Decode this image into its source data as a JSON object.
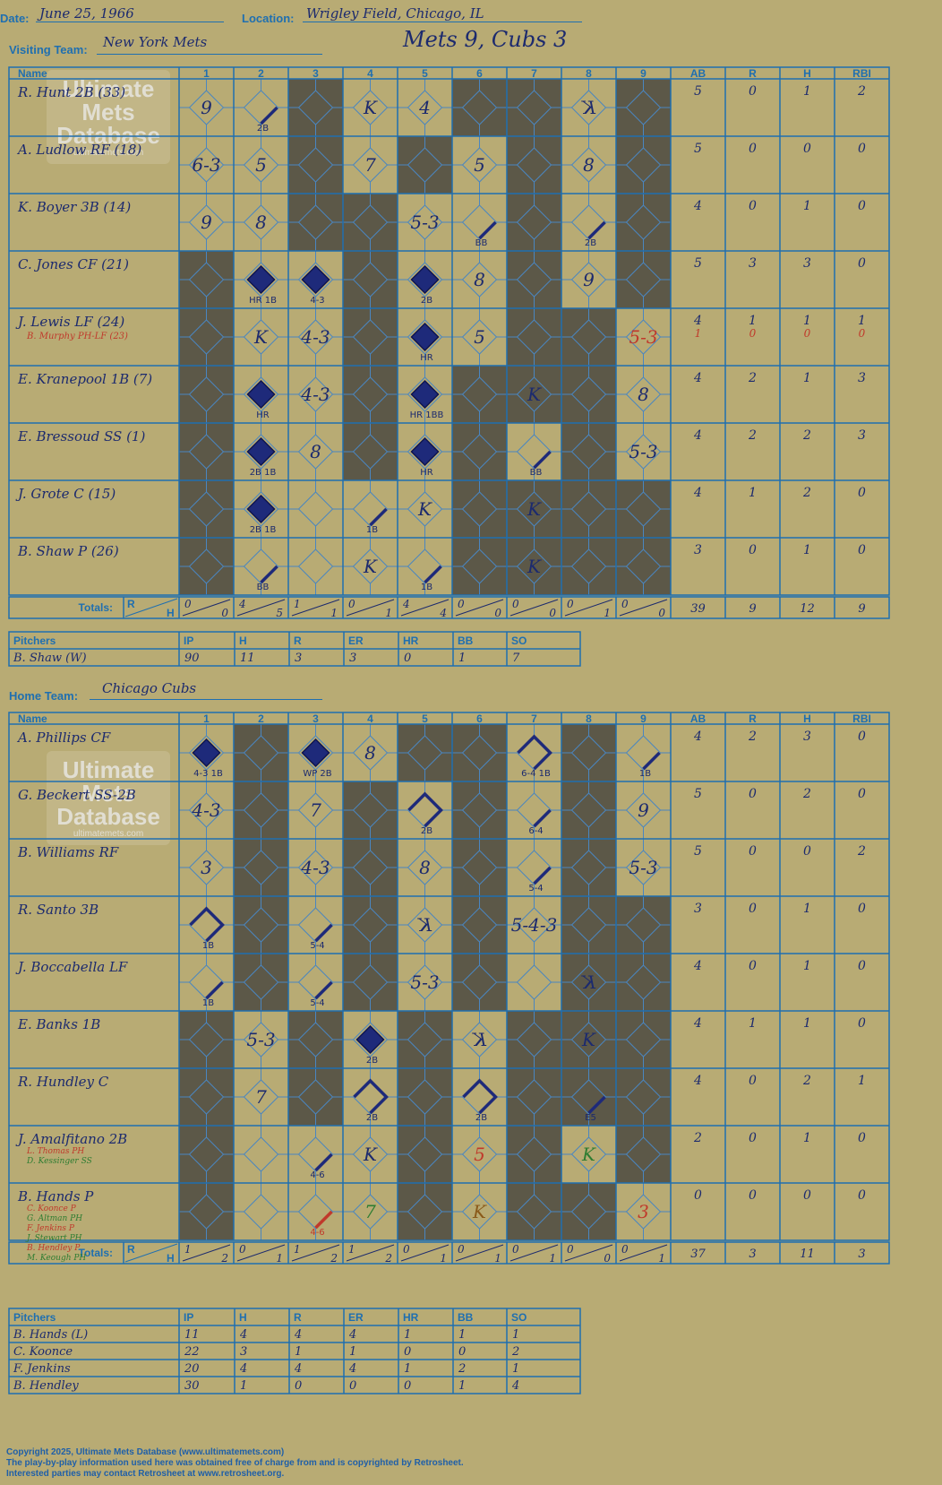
{
  "header": {
    "date_label": "Date:",
    "date": "June 25, 1966",
    "location_label": "Location:",
    "location": "Wrigley Field, Chicago, IL",
    "visiting_label": "Visiting Team:",
    "visiting_team": "New York Mets",
    "result": "Mets 9, Cubs 3",
    "home_label": "Home Team:",
    "home_team": "Chicago Cubs"
  },
  "watermark": {
    "line1": "Ultimate",
    "line2": "Mets",
    "line3": "Database",
    "site": "ultimatemets.com"
  },
  "grid_labels": {
    "name": "Name",
    "innings": [
      "1",
      "2",
      "3",
      "4",
      "5",
      "6",
      "7",
      "8",
      "9"
    ],
    "stats": [
      "AB",
      "R",
      "H",
      "RBI"
    ],
    "totals": "Totals:",
    "r": "R",
    "h": "H"
  },
  "pitch_labels": [
    "Pitchers",
    "IP",
    "H",
    "R",
    "ER",
    "HR",
    "BB",
    "SO"
  ],
  "visitors": {
    "players": [
      {
        "name": "R. Hunt 2B (33)",
        "stats": [
          "5",
          "0",
          "1",
          "2"
        ]
      },
      {
        "name": "A. Ludlow RF (18)",
        "stats": [
          "5",
          "0",
          "0",
          "0"
        ]
      },
      {
        "name": "K. Boyer 3B (14)",
        "stats": [
          "4",
          "0",
          "1",
          "0"
        ]
      },
      {
        "name": "C. Jones CF (21)",
        "stats": [
          "5",
          "3",
          "3",
          "0"
        ]
      },
      {
        "name": "J. Lewis LF (24)",
        "sub": "B. Murphy PH-LF (23)",
        "stats": [
          "4",
          "1",
          "1",
          "1"
        ],
        "sub_stats": [
          "1",
          "0",
          "0",
          "0"
        ]
      },
      {
        "name": "E. Kranepool 1B (7)",
        "stats": [
          "4",
          "2",
          "1",
          "3"
        ]
      },
      {
        "name": "E. Bressoud SS (1)",
        "stats": [
          "4",
          "2",
          "2",
          "3"
        ]
      },
      {
        "name": "J. Grote C (15)",
        "stats": [
          "4",
          "1",
          "2",
          "0"
        ]
      },
      {
        "name": "B. Shaw P (26)",
        "stats": [
          "3",
          "0",
          "1",
          "0"
        ]
      }
    ],
    "inning_totals": [
      [
        "0",
        "0"
      ],
      [
        "4",
        "5"
      ],
      [
        "1",
        "1"
      ],
      [
        "0",
        "1"
      ],
      [
        "4",
        "4"
      ],
      [
        "0",
        "0"
      ],
      [
        "0",
        "0"
      ],
      [
        "0",
        "1"
      ],
      [
        "0",
        "0"
      ]
    ],
    "totals": [
      "39",
      "9",
      "12",
      "9"
    ],
    "cells": [
      {
        "r": 0,
        "c": 0,
        "t": "9"
      },
      {
        "r": 0,
        "c": 1,
        "hit": 1,
        "note": "2B"
      },
      {
        "r": 0,
        "c": 3,
        "t": "K"
      },
      {
        "r": 0,
        "c": 4,
        "t": "4"
      },
      {
        "r": 0,
        "c": 7,
        "t": "K",
        "rev": true
      },
      {
        "r": 1,
        "c": 0,
        "t": "6-3"
      },
      {
        "r": 1,
        "c": 1,
        "t": "5"
      },
      {
        "r": 1,
        "c": 3,
        "t": "7"
      },
      {
        "r": 1,
        "c": 5,
        "t": "5"
      },
      {
        "r": 1,
        "c": 7,
        "t": "8"
      },
      {
        "r": 2,
        "c": 0,
        "t": "9"
      },
      {
        "r": 2,
        "c": 1,
        "t": "8"
      },
      {
        "r": 2,
        "c": 4,
        "t": "5-3"
      },
      {
        "r": 2,
        "c": 5,
        "hit": 1,
        "note": "BB"
      },
      {
        "r": 2,
        "c": 7,
        "hit": 1,
        "note": "2B"
      },
      {
        "r": 3,
        "c": 1,
        "run": true,
        "note": "HR 1B"
      },
      {
        "r": 3,
        "c": 2,
        "run": true,
        "note": "4-3"
      },
      {
        "r": 3,
        "c": 4,
        "run": true,
        "note": "2B"
      },
      {
        "r": 3,
        "c": 5,
        "t": "8"
      },
      {
        "r": 3,
        "c": 7,
        "t": "9"
      },
      {
        "r": 4,
        "c": 1,
        "t": "K"
      },
      {
        "r": 4,
        "c": 2,
        "t": "4-3"
      },
      {
        "r": 4,
        "c": 4,
        "run": true,
        "note": "HR"
      },
      {
        "r": 4,
        "c": 5,
        "t": "5"
      },
      {
        "r": 4,
        "c": 8,
        "t": "5-3",
        "red": true
      },
      {
        "r": 5,
        "c": 1,
        "run": true,
        "note": "HR"
      },
      {
        "r": 5,
        "c": 2,
        "t": "4-3"
      },
      {
        "r": 5,
        "c": 4,
        "run": true,
        "note": "HR 1BB"
      },
      {
        "r": 5,
        "c": 6,
        "t": "K"
      },
      {
        "r": 5,
        "c": 8,
        "t": "8"
      },
      {
        "r": 6,
        "c": 1,
        "run": true,
        "note": "2B 1B"
      },
      {
        "r": 6,
        "c": 2,
        "t": "8"
      },
      {
        "r": 6,
        "c": 4,
        "run": true,
        "note": "HR"
      },
      {
        "r": 6,
        "c": 6,
        "hit": 1,
        "note": "BB"
      },
      {
        "r": 6,
        "c": 8,
        "t": "5-3"
      },
      {
        "r": 7,
        "c": 1,
        "run": true,
        "note": "2B 1B"
      },
      {
        "r": 7,
        "c": 3,
        "hit": 1,
        "note": "1B"
      },
      {
        "r": 7,
        "c": 4,
        "t": "K"
      },
      {
        "r": 7,
        "c": 6,
        "t": "K"
      },
      {
        "r": 8,
        "c": 1,
        "hit": 1,
        "note": "BB"
      },
      {
        "r": 8,
        "c": 3,
        "t": "K"
      },
      {
        "r": 8,
        "c": 4,
        "hit": 1,
        "note": "1B"
      },
      {
        "r": 8,
        "c": 6,
        "t": "K"
      }
    ],
    "pitchers": [
      {
        "name": "B. Shaw (W)",
        "stats": [
          "90",
          "11",
          "3",
          "3",
          "0",
          "1",
          "7"
        ]
      }
    ]
  },
  "home": {
    "players": [
      {
        "name": "A. Phillips CF",
        "stats": [
          "4",
          "2",
          "3",
          "0"
        ]
      },
      {
        "name": "G. Beckert SS-2B",
        "stats": [
          "5",
          "0",
          "2",
          "0"
        ]
      },
      {
        "name": "B. Williams RF",
        "stats": [
          "5",
          "0",
          "0",
          "2"
        ]
      },
      {
        "name": "R. Santo 3B",
        "stats": [
          "3",
          "0",
          "1",
          "0"
        ]
      },
      {
        "name": "J. Boccabella LF",
        "stats": [
          "4",
          "0",
          "1",
          "0"
        ]
      },
      {
        "name": "E. Banks 1B",
        "stats": [
          "4",
          "1",
          "1",
          "0"
        ]
      },
      {
        "name": "R. Hundley C",
        "stats": [
          "4",
          "0",
          "2",
          "1"
        ]
      },
      {
        "name": "J. Amalfitano 2B",
        "subs": [
          "L. Thomas PH",
          "D. Kessinger SS"
        ],
        "stats": [
          "2",
          "0",
          "1",
          "0"
        ]
      },
      {
        "name": "B. Hands P",
        "subs": [
          "C. Koonce P",
          "G. Altman PH",
          "F. Jenkins P",
          "J. Stewart PH",
          "B. Hendley P",
          "M. Keough PH"
        ],
        "stats": [
          "0",
          "0",
          "0",
          "0"
        ]
      }
    ],
    "inning_totals": [
      [
        "1",
        "2"
      ],
      [
        "0",
        "1"
      ],
      [
        "1",
        "2"
      ],
      [
        "1",
        "2"
      ],
      [
        "0",
        "1"
      ],
      [
        "0",
        "1"
      ],
      [
        "0",
        "1"
      ],
      [
        "0",
        "0"
      ],
      [
        "0",
        "1"
      ]
    ],
    "totals": [
      "37",
      "3",
      "11",
      "3"
    ],
    "cells": [
      {
        "r": 0,
        "c": 0,
        "run": true,
        "note": "4-3 1B"
      },
      {
        "r": 0,
        "c": 2,
        "run": true,
        "note": "WP 2B"
      },
      {
        "r": 0,
        "c": 3,
        "t": "8"
      },
      {
        "r": 0,
        "c": 6,
        "hit": 2,
        "note": "6-4 1B"
      },
      {
        "r": 0,
        "c": 8,
        "hit": 1,
        "note": "1B"
      },
      {
        "r": 1,
        "c": 0,
        "t": "4-3"
      },
      {
        "r": 1,
        "c": 2,
        "t": "7"
      },
      {
        "r": 1,
        "c": 4,
        "hit": 2,
        "note": "2B"
      },
      {
        "r": 1,
        "c": 6,
        "hit": 1,
        "note": "6-4"
      },
      {
        "r": 1,
        "c": 8,
        "t": "9"
      },
      {
        "r": 2,
        "c": 0,
        "t": "3"
      },
      {
        "r": 2,
        "c": 2,
        "t": "4-3"
      },
      {
        "r": 2,
        "c": 4,
        "t": "8"
      },
      {
        "r": 2,
        "c": 6,
        "hit": 1,
        "note": "5-4"
      },
      {
        "r": 2,
        "c": 8,
        "t": "5-3"
      },
      {
        "r": 3,
        "c": 0,
        "hit": 2,
        "note": "1B"
      },
      {
        "r": 3,
        "c": 2,
        "hit": 1,
        "note": "5-4"
      },
      {
        "r": 3,
        "c": 4,
        "t": "K",
        "rev": true
      },
      {
        "r": 3,
        "c": 6,
        "t": "5-4-3"
      },
      {
        "r": 4,
        "c": 0,
        "hit": 1,
        "note": "1B"
      },
      {
        "r": 4,
        "c": 2,
        "hit": 1,
        "note": "5-4"
      },
      {
        "r": 4,
        "c": 4,
        "t": "5-3"
      },
      {
        "r": 4,
        "c": 7,
        "t": "K",
        "rev": true
      },
      {
        "r": 5,
        "c": 1,
        "t": "5-3"
      },
      {
        "r": 5,
        "c": 3,
        "run": true,
        "note": "2B"
      },
      {
        "r": 5,
        "c": 5,
        "t": "K",
        "rev": true
      },
      {
        "r": 5,
        "c": 7,
        "t": "K"
      },
      {
        "r": 6,
        "c": 1,
        "t": "7"
      },
      {
        "r": 6,
        "c": 3,
        "hit": 2,
        "note": "2B"
      },
      {
        "r": 6,
        "c": 5,
        "hit": 2,
        "note": "2B"
      },
      {
        "r": 6,
        "c": 7,
        "hit": 1,
        "note": "E5"
      },
      {
        "r": 7,
        "c": 2,
        "hit": 1,
        "note": "4-6"
      },
      {
        "r": 7,
        "c": 3,
        "t": "K"
      },
      {
        "r": 7,
        "c": 5,
        "t": "5",
        "red": true
      },
      {
        "r": 7,
        "c": 7,
        "t": "K",
        "green": true
      },
      {
        "r": 8,
        "c": 2,
        "hit": 1,
        "note": "4-6",
        "red": true
      },
      {
        "r": 8,
        "c": 3,
        "t": "7",
        "green": true
      },
      {
        "r": 8,
        "c": 5,
        "t": "K",
        "brown": true
      },
      {
        "r": 8,
        "c": 8,
        "t": "3",
        "red": true
      }
    ],
    "pitchers": [
      {
        "name": "B. Hands (L)",
        "stats": [
          "11",
          "4",
          "4",
          "4",
          "1",
          "1",
          "1"
        ]
      },
      {
        "name": "C. Koonce",
        "stats": [
          "22",
          "3",
          "1",
          "1",
          "0",
          "0",
          "2"
        ]
      },
      {
        "name": "F. Jenkins",
        "stats": [
          "20",
          "4",
          "4",
          "4",
          "1",
          "2",
          "1"
        ]
      },
      {
        "name": "B. Hendley",
        "stats": [
          "30",
          "1",
          "0",
          "0",
          "0",
          "1",
          "4"
        ]
      }
    ]
  },
  "footer": [
    "Copyright 2025, Ultimate Mets Database (www.ultimatemets.com)",
    "The play-by-play information used here was obtained free of charge from and is copyrighted by Retrosheet.",
    "Interested parties may contact Retrosheet at www.retrosheet.org."
  ],
  "colors": {
    "background": "#b8ab74",
    "grid": "#1f6fb0",
    "dark_block": "#5c5848",
    "ink": "#1c2a6e",
    "red_ink": "#c0392b",
    "green_ink": "#2e7d32"
  }
}
